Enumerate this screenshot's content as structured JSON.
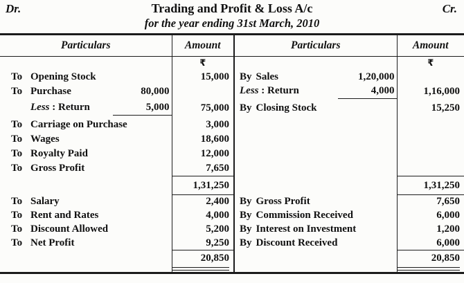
{
  "page": {
    "dr_label": "Dr.",
    "cr_label": "Cr.",
    "title": "Trading and Profit & Loss A/c",
    "subtitle": "for the year ending 31st March, 2010"
  },
  "table": {
    "column_headers": [
      "Particulars",
      "Amount",
      "Particulars",
      "Amount"
    ],
    "currency_symbol": "₹",
    "rows": [
      {
        "type": "currency"
      },
      {
        "type": "entry",
        "left": {
          "prefix": "To",
          "name": "Opening Stock",
          "amount": "15,000"
        },
        "right": {
          "prefix": "By",
          "name": "Sales",
          "sub": "1,20,000"
        }
      },
      {
        "type": "entry",
        "left": {
          "prefix": "To",
          "name": "Purchase",
          "sub": "80,000"
        },
        "right": {
          "name_italic": "Less",
          "name": " : Return",
          "sub": "4,000",
          "sub_underline": true,
          "amount": "1,16,000"
        }
      },
      {
        "type": "entry",
        "left": {
          "name_italic": "Less",
          "name": " : Return",
          "sub": "5,000",
          "sub_underline": true,
          "amount": "75,000"
        },
        "right": {
          "prefix": "By",
          "name": "Closing Stock",
          "amount": "15,250"
        }
      },
      {
        "type": "entry",
        "left": {
          "prefix": "To",
          "name": "Carriage on Purchase",
          "amount": "3,000"
        }
      },
      {
        "type": "entry",
        "left": {
          "prefix": "To",
          "name": "Wages",
          "amount": "18,600"
        }
      },
      {
        "type": "entry",
        "left": {
          "prefix": "To",
          "name": "Royalty Paid",
          "amount": "12,000"
        }
      },
      {
        "type": "entry",
        "left": {
          "prefix": "To",
          "name": "Gross Profit",
          "amount": "7,650"
        }
      },
      {
        "type": "total",
        "rule": "both",
        "left": {
          "amount": "1,31,250"
        },
        "right": {
          "amount": "1,31,250"
        }
      },
      {
        "type": "entry",
        "left": {
          "prefix": "To",
          "name": "Salary",
          "amount": "2,400"
        },
        "right": {
          "prefix": "By",
          "name": "Gross Profit",
          "amount": "7,650"
        }
      },
      {
        "type": "entry",
        "left": {
          "prefix": "To",
          "name": "Rent and Rates",
          "amount": "4,000"
        },
        "right": {
          "prefix": "By",
          "name": "Commission Received",
          "amount": "6,000"
        }
      },
      {
        "type": "entry",
        "left": {
          "prefix": "To",
          "name": "Discount Allowed",
          "amount": "5,200"
        },
        "right": {
          "prefix": "By",
          "name": "Interest on Investment",
          "amount": "1,200"
        }
      },
      {
        "type": "entry",
        "left": {
          "prefix": "To",
          "name": "Net Profit",
          "amount": "9,250"
        },
        "right": {
          "prefix": "By",
          "name": "Discount Received",
          "amount": "6,000"
        }
      },
      {
        "type": "total",
        "rule": "top",
        "left": {
          "amount": "20,850"
        },
        "right": {
          "amount": "20,850"
        }
      },
      {
        "type": "double_rule"
      }
    ]
  }
}
